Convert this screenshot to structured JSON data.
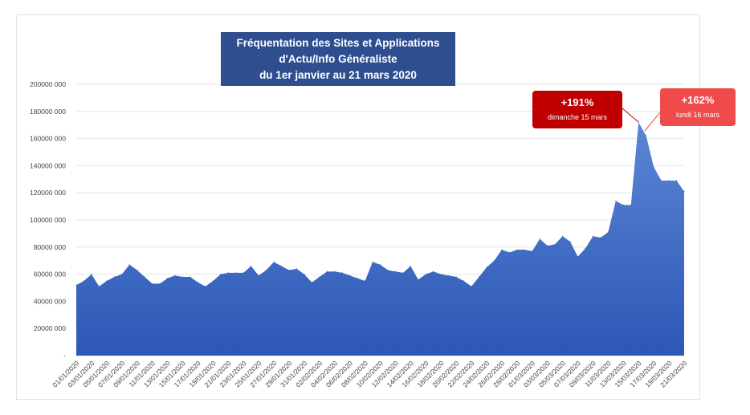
{
  "chart_data": {
    "type": "area",
    "title": [
      "Fréquentation des Sites et Applications",
      "d'Actu/Info Généraliste",
      "du 1er janvier au 21 mars 2020"
    ],
    "ylim": [
      0,
      200000000
    ],
    "yticks": [
      "-",
      "20000 000",
      "40000 000",
      "60000 000",
      "80000 000",
      "100000 000",
      "120000 000",
      "140000 000",
      "160000 000",
      "180000 000",
      "200000 000"
    ],
    "x_labels": [
      "01/01/2020",
      "03/01/2020",
      "05/01/2020",
      "07/01/2020",
      "09/01/2020",
      "11/01/2020",
      "13/01/2020",
      "15/01/2020",
      "17/01/2020",
      "19/01/2020",
      "21/01/2020",
      "23/01/2020",
      "25/01/2020",
      "27/01/2020",
      "29/01/2020",
      "31/01/2020",
      "02/02/2020",
      "04/02/2020",
      "06/02/2020",
      "08/02/2020",
      "10/02/2020",
      "12/02/2020",
      "14/02/2020",
      "16/02/2020",
      "18/02/2020",
      "20/02/2020",
      "22/02/2020",
      "24/02/2020",
      "26/02/2020",
      "28/02/2020",
      "01/03/2020",
      "03/03/2020",
      "05/03/2020",
      "07/03/2020",
      "09/03/2020",
      "11/03/2020",
      "13/03/2020",
      "15/03/2020",
      "17/03/2020",
      "19/03/2020",
      "21/03/2020"
    ],
    "values": [
      52,
      55,
      60,
      51,
      55,
      58,
      60,
      67,
      63,
      58,
      53,
      53,
      57,
      59,
      58,
      58,
      54,
      51,
      55,
      60,
      61,
      61,
      61,
      66,
      59,
      63,
      69,
      66,
      63,
      64,
      60,
      54,
      58,
      62,
      62,
      61,
      59,
      57,
      55,
      69,
      67,
      63,
      62,
      61,
      66,
      56,
      60,
      62,
      60,
      59,
      58,
      55,
      51,
      58,
      65,
      70,
      78,
      76,
      78,
      78,
      77,
      86,
      81,
      82,
      88,
      84,
      73,
      79,
      88,
      87,
      91,
      114,
      111,
      111,
      172,
      162,
      139,
      129,
      129,
      129,
      121
    ],
    "value_unit": "millions",
    "series": [
      {
        "values_ref": "values"
      }
    ],
    "annotations": [
      {
        "label": "+191%",
        "sub": "dimanche 15 mars",
        "color": "#c00000"
      },
      {
        "label": "+162%",
        "sub": "lundi 16 mars",
        "color": "#f04b4b"
      }
    ],
    "colors": {
      "area": "#3a66c4",
      "title_bg": "#2e4e8f"
    },
    "grid": true
  }
}
